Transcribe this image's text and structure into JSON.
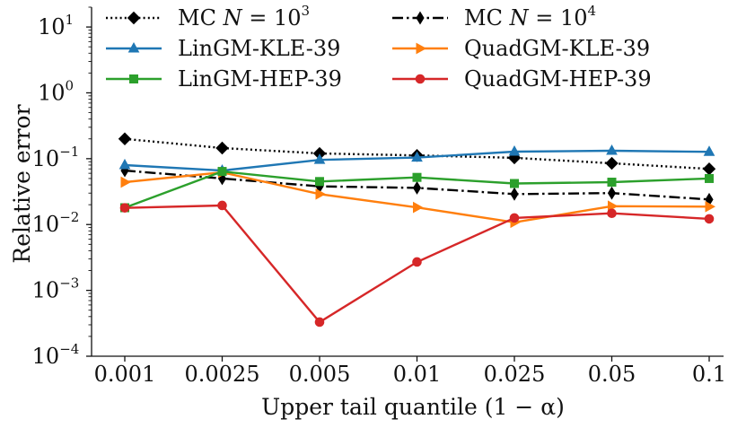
{
  "chart_data": {
    "type": "line",
    "title": "",
    "xlabel": "Upper tail quantile (1 − α)",
    "ylabel": "Relative error",
    "categories": [
      "0.001",
      "0.0025",
      "0.005",
      "0.01",
      "0.025",
      "0.05",
      "0.1"
    ],
    "yscale": "log",
    "ylim": [
      0.0001,
      20
    ],
    "yticks": [
      {
        "value": 0.0001,
        "base": "10",
        "exp": "−4"
      },
      {
        "value": 0.001,
        "base": "10",
        "exp": "−3"
      },
      {
        "value": 0.01,
        "base": "10",
        "exp": "−2"
      },
      {
        "value": 0.1,
        "base": "10",
        "exp": "−1"
      },
      {
        "value": 1,
        "base": "10",
        "exp": "0"
      },
      {
        "value": 10,
        "base": "10",
        "exp": "1"
      }
    ],
    "grid": false,
    "legend_position": "top",
    "series": [
      {
        "name": "MC N = 10^3",
        "label_main": "MC ",
        "label_var": "N",
        "label_eq": " = 10",
        "label_exp": "3",
        "color": "#000000",
        "linestyle": "dotted",
        "marker": "diamond",
        "values": [
          0.2,
          0.145,
          0.12,
          0.112,
          0.103,
          0.085,
          0.07
        ]
      },
      {
        "name": "MC N = 10^4",
        "label_main": "MC ",
        "label_var": "N",
        "label_eq": " = 10",
        "label_exp": "4",
        "color": "#000000",
        "linestyle": "dashdot",
        "marker": "thin_diamond",
        "values": [
          0.066,
          0.05,
          0.038,
          0.036,
          0.029,
          0.03,
          0.024
        ]
      },
      {
        "name": "LinGM-KLE-39",
        "label_main": "LinGM-KLE-39",
        "color": "#1f77b4",
        "linestyle": "solid",
        "marker": "triangle",
        "values": [
          0.08,
          0.066,
          0.096,
          0.104,
          0.128,
          0.132,
          0.127
        ]
      },
      {
        "name": "QuadGM-KLE-39",
        "label_main": "QuadGM-KLE-39",
        "color": "#ff7f0e",
        "linestyle": "solid",
        "marker": "triangle-right",
        "values": [
          0.044,
          0.062,
          0.029,
          0.0182,
          0.0108,
          0.019,
          0.0187
        ]
      },
      {
        "name": "LinGM-HEP-39",
        "label_main": "LinGM-HEP-39",
        "color": "#2ca02c",
        "linestyle": "solid",
        "marker": "square",
        "values": [
          0.018,
          0.064,
          0.045,
          0.052,
          0.042,
          0.044,
          0.05
        ]
      },
      {
        "name": "QuadGM-HEP-39",
        "label_main": "QuadGM-HEP-39",
        "color": "#d62728",
        "linestyle": "solid",
        "marker": "circle",
        "values": [
          0.0179,
          0.0195,
          0.00033,
          0.0027,
          0.0126,
          0.0148,
          0.0122
        ]
      }
    ]
  }
}
